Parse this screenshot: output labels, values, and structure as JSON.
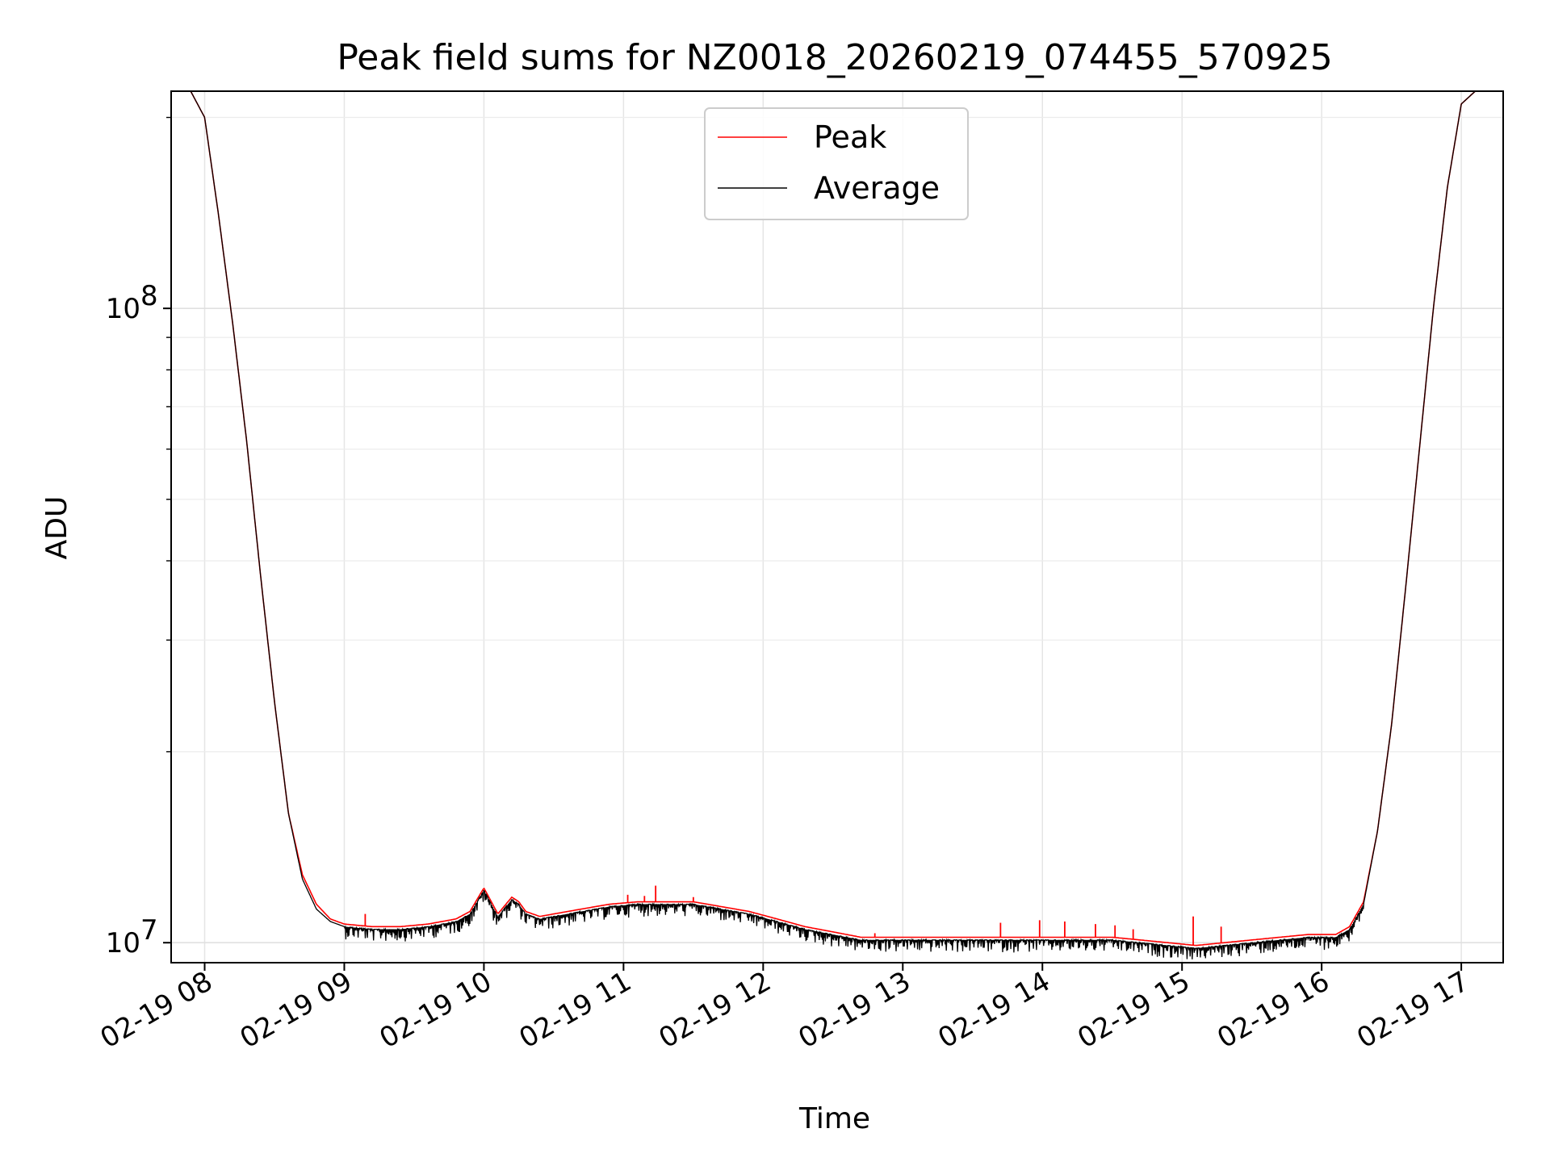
{
  "chart_data": {
    "type": "line",
    "title": "Peak field sums for NZ0018_20260219_074455_570925",
    "xlabel": "Time",
    "ylabel": "ADU",
    "yscale": "log",
    "ylim": [
      9300000,
      220000000
    ],
    "xlim": [
      7.76,
      17.3
    ],
    "grid": true,
    "legend": {
      "position": "top-center",
      "entries": [
        "Peak",
        "Average"
      ]
    },
    "x_ticks": [
      {
        "value": 8,
        "label": "02-19 08"
      },
      {
        "value": 9,
        "label": "02-19 09"
      },
      {
        "value": 10,
        "label": "02-19 10"
      },
      {
        "value": 11,
        "label": "02-19 11"
      },
      {
        "value": 12,
        "label": "02-19 12"
      },
      {
        "value": 13,
        "label": "02-19 13"
      },
      {
        "value": 14,
        "label": "02-19 14"
      },
      {
        "value": 15,
        "label": "02-19 15"
      },
      {
        "value": 16,
        "label": "02-19 16"
      },
      {
        "value": 17,
        "label": "02-19 17"
      }
    ],
    "y_ticks": [
      {
        "value": 10000000,
        "base": "10",
        "exp": "7"
      },
      {
        "value": 100000000,
        "base": "10",
        "exp": "8"
      }
    ],
    "series": [
      {
        "name": "Peak",
        "color": "#ff0000",
        "x": [
          7.75,
          7.9,
          8.0,
          8.1,
          8.2,
          8.3,
          8.4,
          8.5,
          8.6,
          8.7,
          8.8,
          8.9,
          9.0,
          9.2,
          9.4,
          9.6,
          9.8,
          9.9,
          10.0,
          10.1,
          10.2,
          10.25,
          10.3,
          10.4,
          10.5,
          10.7,
          10.9,
          11.1,
          11.3,
          11.5,
          11.7,
          11.9,
          12.1,
          12.3,
          12.5,
          12.7,
          13.0,
          13.3,
          13.6,
          13.9,
          14.1,
          14.3,
          14.5,
          14.7,
          14.9,
          15.0,
          15.1,
          15.3,
          15.5,
          15.7,
          15.9,
          16.1,
          16.2,
          16.3,
          16.4,
          16.5,
          16.6,
          16.7,
          16.8,
          16.9,
          17.0,
          17.1,
          17.3
        ],
        "y": [
          220000000,
          220000000,
          200000000,
          140000000,
          95000000,
          62000000,
          38000000,
          24000000,
          16000000,
          12800000,
          11500000,
          10900000,
          10700000,
          10600000,
          10600000,
          10700000,
          10900000,
          11200000,
          12200000,
          11100000,
          11800000,
          11600000,
          11200000,
          11000000,
          11100000,
          11300000,
          11500000,
          11600000,
          11600000,
          11600000,
          11400000,
          11200000,
          10900000,
          10600000,
          10400000,
          10200000,
          10200000,
          10200000,
          10200000,
          10200000,
          10200000,
          10200000,
          10200000,
          10100000,
          10000000,
          9950000,
          9900000,
          10000000,
          10100000,
          10200000,
          10300000,
          10300000,
          10600000,
          11600000,
          15000000,
          22000000,
          36000000,
          60000000,
          100000000,
          155000000,
          210000000,
          220000000,
          220000000
        ],
        "spikes": [
          {
            "x": 9.15,
            "y": 11100000
          },
          {
            "x": 11.03,
            "y": 11900000
          },
          {
            "x": 11.15,
            "y": 11850000
          },
          {
            "x": 11.23,
            "y": 12300000
          },
          {
            "x": 11.5,
            "y": 11800000
          },
          {
            "x": 12.8,
            "y": 10350000
          },
          {
            "x": 13.7,
            "y": 10750000
          },
          {
            "x": 13.98,
            "y": 10850000
          },
          {
            "x": 14.16,
            "y": 10800000
          },
          {
            "x": 14.38,
            "y": 10700000
          },
          {
            "x": 14.52,
            "y": 10650000
          },
          {
            "x": 14.65,
            "y": 10500000
          },
          {
            "x": 15.08,
            "y": 11000000
          },
          {
            "x": 15.28,
            "y": 10600000
          }
        ]
      },
      {
        "name": "Average",
        "color": "#000000",
        "x": [
          7.75,
          7.9,
          8.0,
          8.1,
          8.2,
          8.3,
          8.4,
          8.5,
          8.6,
          8.7,
          8.8,
          8.9,
          9.0,
          9.2,
          9.4,
          9.6,
          9.8,
          9.9,
          10.0,
          10.1,
          10.2,
          10.25,
          10.3,
          10.4,
          10.5,
          10.7,
          10.9,
          11.1,
          11.3,
          11.5,
          11.7,
          11.9,
          12.1,
          12.3,
          12.5,
          12.7,
          13.0,
          13.3,
          13.6,
          13.9,
          14.1,
          14.3,
          14.5,
          14.7,
          14.9,
          15.0,
          15.1,
          15.3,
          15.5,
          15.7,
          15.9,
          16.1,
          16.2,
          16.3,
          16.4,
          16.5,
          16.6,
          16.7,
          16.8,
          16.9,
          17.0,
          17.1,
          17.3
        ],
        "y": [
          220000000,
          220000000,
          200000000,
          140000000,
          95000000,
          62000000,
          38000000,
          24000000,
          16000000,
          12600000,
          11300000,
          10800000,
          10600000,
          10500000,
          10500000,
          10600000,
          10800000,
          11100000,
          12100000,
          11000000,
          11700000,
          11500000,
          11100000,
          10900000,
          11000000,
          11200000,
          11400000,
          11500000,
          11500000,
          11500000,
          11300000,
          11100000,
          10800000,
          10500000,
          10300000,
          10100000,
          10100000,
          10100000,
          10100000,
          10100000,
          10100000,
          10100000,
          10100000,
          10000000,
          9900000,
          9850000,
          9800000,
          9900000,
          10000000,
          10100000,
          10200000,
          10200000,
          10500000,
          11500000,
          15000000,
          22000000,
          36000000,
          60000000,
          100000000,
          155000000,
          210000000,
          220000000,
          220000000
        ],
        "noise_range": [
          9.0,
          16.3
        ],
        "noise_depth": 0.045
      }
    ]
  }
}
